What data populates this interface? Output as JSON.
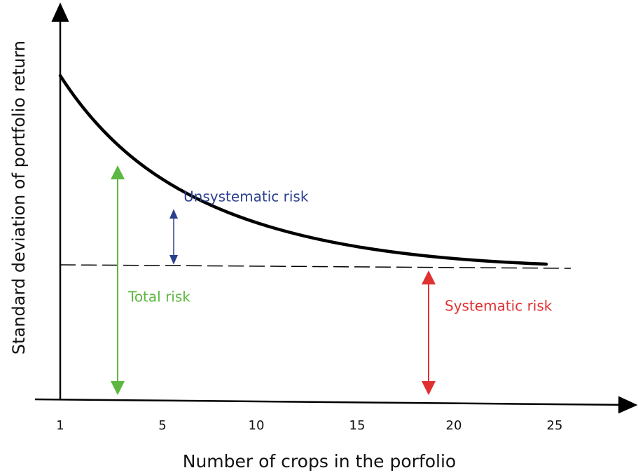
{
  "y_axis_label": "Standard deviation of portfolio return",
  "x_axis_label": "Number of crops in the porfolio",
  "x_ticks": [
    1,
    5,
    10,
    15,
    20,
    25
  ],
  "annotations": {
    "unsystematic": "Unsystematic risk",
    "total": "Total risk",
    "systematic": "Systematic risk"
  }
}
